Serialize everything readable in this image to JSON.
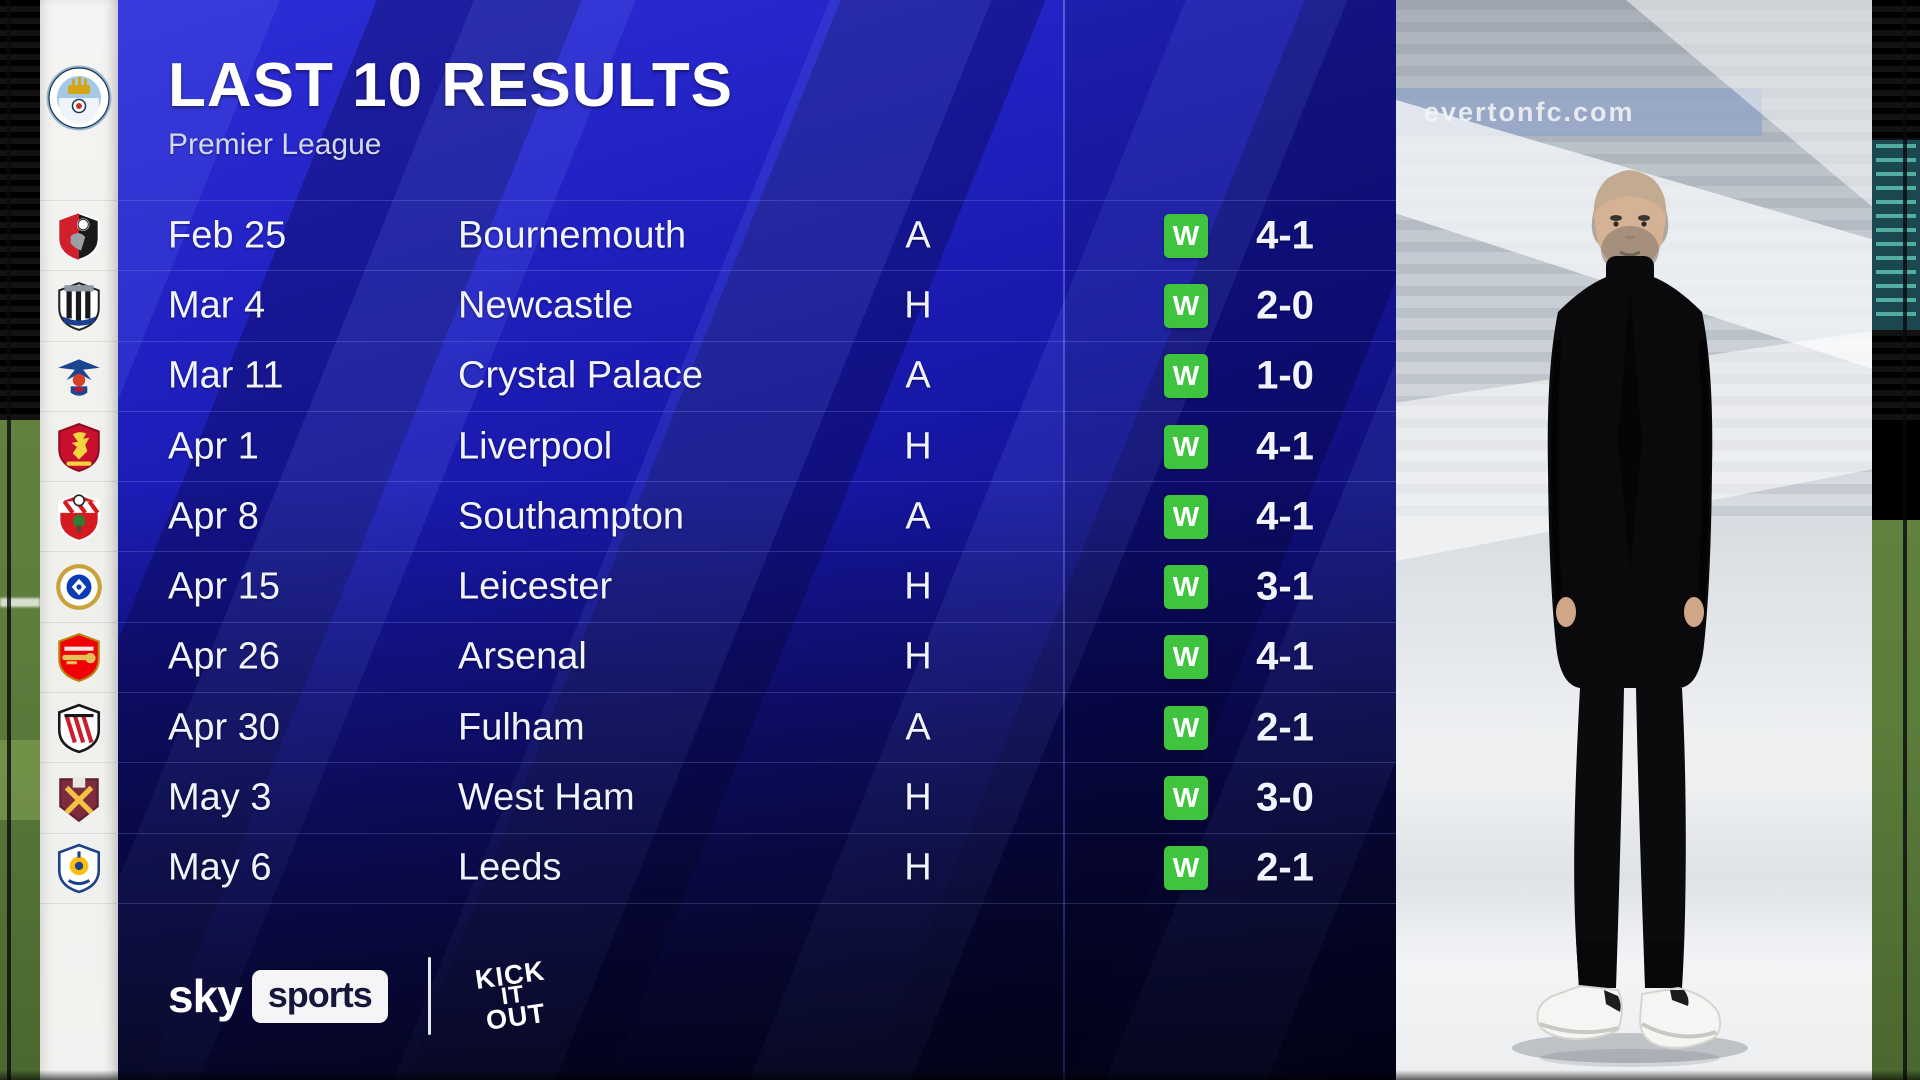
{
  "header": {
    "title": "LAST 10 RESULTS",
    "subtitle": "Premier League",
    "team": "Manchester City",
    "team_badge": "manchester-city"
  },
  "results": [
    {
      "date": "Feb 25",
      "opponent": "Bournemouth",
      "venue": "A",
      "result": "W",
      "score": "4-1",
      "badge": "bournemouth"
    },
    {
      "date": "Mar 4",
      "opponent": "Newcastle",
      "venue": "H",
      "result": "W",
      "score": "2-0",
      "badge": "newcastle"
    },
    {
      "date": "Mar 11",
      "opponent": "Crystal Palace",
      "venue": "A",
      "result": "W",
      "score": "1-0",
      "badge": "crystal-palace"
    },
    {
      "date": "Apr 1",
      "opponent": "Liverpool",
      "venue": "H",
      "result": "W",
      "score": "4-1",
      "badge": "liverpool"
    },
    {
      "date": "Apr 8",
      "opponent": "Southampton",
      "venue": "A",
      "result": "W",
      "score": "4-1",
      "badge": "southampton"
    },
    {
      "date": "Apr 15",
      "opponent": "Leicester",
      "venue": "H",
      "result": "W",
      "score": "3-1",
      "badge": "leicester"
    },
    {
      "date": "Apr 26",
      "opponent": "Arsenal",
      "venue": "H",
      "result": "W",
      "score": "4-1",
      "badge": "arsenal"
    },
    {
      "date": "Apr 30",
      "opponent": "Fulham",
      "venue": "A",
      "result": "W",
      "score": "2-1",
      "badge": "fulham"
    },
    {
      "date": "May 3",
      "opponent": "West Ham",
      "venue": "H",
      "result": "W",
      "score": "3-0",
      "badge": "west-ham"
    },
    {
      "date": "May 6",
      "opponent": "Leeds",
      "venue": "H",
      "result": "W",
      "score": "2-1",
      "badge": "leeds"
    }
  ],
  "footer": {
    "sky_brand": "sky",
    "sky_product": "sports",
    "partner_lines": [
      "KICK",
      "IT",
      "OUT"
    ]
  },
  "photo": {
    "watermark": "evertonfc.com"
  },
  "colors": {
    "win_green": "#3ec43e",
    "panel_blue": "#1d1db8",
    "panel_dark": "#0a0a33",
    "rail_bg": "#f2f2f0",
    "sports_box_text": "#16163c"
  }
}
